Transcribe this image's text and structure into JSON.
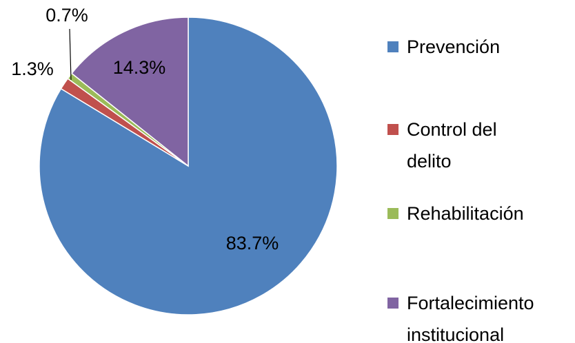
{
  "chart_data": {
    "type": "pie",
    "categories": [
      "Prevención",
      "Control del delito",
      "Rehabilitación",
      "Fortalecimiento institucional"
    ],
    "values": [
      83.7,
      1.3,
      0.7,
      14.3
    ],
    "value_labels": [
      "83.7%",
      "1.3%",
      "0.7%",
      "14.3%"
    ],
    "colors": [
      "#4f81bd",
      "#c0504d",
      "#9bbb59",
      "#8064a2"
    ],
    "legend": "right"
  }
}
